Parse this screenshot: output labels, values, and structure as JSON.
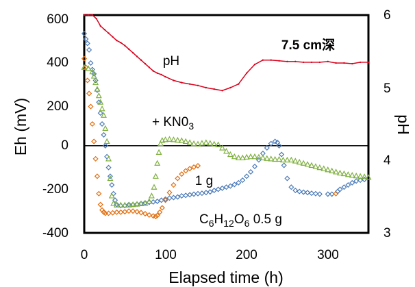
{
  "chart_data": {
    "type": "scatter",
    "xlabel": "Elapsed time (h)",
    "ylabel": "Eh (mV)",
    "y2label": "pH",
    "xlim": [
      0,
      350
    ],
    "ylim": [
      -400,
      600
    ],
    "y2lim": [
      3,
      6
    ],
    "xticks": [
      "0",
      "100",
      "200",
      "300"
    ],
    "yticks": [
      "600",
      "400",
      "200",
      "0",
      "-200",
      "-400"
    ],
    "y2ticks": [
      "6",
      "5",
      "4",
      "3"
    ],
    "zero_line": true,
    "grid": false,
    "series": [
      {
        "color": "#d9001b",
        "marker": "line",
        "axis": "right",
        "points": [
          [
            0,
            6.0
          ],
          [
            5,
            6.0
          ],
          [
            10,
            6.0
          ],
          [
            15,
            5.95
          ],
          [
            20,
            5.85
          ],
          [
            25,
            5.8
          ],
          [
            30,
            5.75
          ],
          [
            35,
            5.7
          ],
          [
            40,
            5.65
          ],
          [
            45,
            5.62
          ],
          [
            50,
            5.58
          ],
          [
            55,
            5.53
          ],
          [
            60,
            5.48
          ],
          [
            65,
            5.43
          ],
          [
            70,
            5.38
          ],
          [
            75,
            5.33
          ],
          [
            80,
            5.28
          ],
          [
            85,
            5.23
          ],
          [
            90,
            5.2
          ],
          [
            95,
            5.18
          ],
          [
            100,
            5.15
          ],
          [
            110,
            5.1
          ],
          [
            120,
            5.07
          ],
          [
            130,
            5.05
          ],
          [
            140,
            5.03
          ],
          [
            150,
            5.0
          ],
          [
            160,
            4.98
          ],
          [
            170,
            4.96
          ],
          [
            180,
            5.0
          ],
          [
            190,
            5.05
          ],
          [
            200,
            5.2
          ],
          [
            210,
            5.32
          ],
          [
            220,
            5.38
          ],
          [
            230,
            5.38
          ],
          [
            240,
            5.37
          ],
          [
            250,
            5.36
          ],
          [
            260,
            5.36
          ],
          [
            270,
            5.35
          ],
          [
            280,
            5.35
          ],
          [
            290,
            5.35
          ],
          [
            300,
            5.36
          ],
          [
            310,
            5.34
          ],
          [
            320,
            5.34
          ],
          [
            330,
            5.33
          ],
          [
            340,
            5.35
          ],
          [
            350,
            5.35
          ]
        ]
      },
      {
        "color": "#4a7ab8",
        "marker": "diamond",
        "axis": "left",
        "points": [
          [
            0,
            515
          ],
          [
            2,
            490
          ],
          [
            4,
            470
          ],
          [
            6,
            440
          ],
          [
            8,
            380
          ],
          [
            10,
            350
          ],
          [
            12,
            330
          ],
          [
            14,
            300
          ],
          [
            16,
            255
          ],
          [
            18,
            200
          ],
          [
            20,
            150
          ],
          [
            22,
            100
          ],
          [
            24,
            50
          ],
          [
            26,
            0
          ],
          [
            28,
            -50
          ],
          [
            30,
            -100
          ],
          [
            32,
            -140
          ],
          [
            34,
            -180
          ],
          [
            36,
            -220
          ],
          [
            38,
            -250
          ],
          [
            40,
            -270
          ],
          [
            45,
            -275
          ],
          [
            50,
            -275
          ],
          [
            55,
            -270
          ],
          [
            60,
            -270
          ],
          [
            65,
            -268
          ],
          [
            70,
            -265
          ],
          [
            75,
            -262
          ],
          [
            80,
            -260
          ],
          [
            85,
            -258
          ],
          [
            90,
            -255
          ],
          [
            95,
            -250
          ],
          [
            100,
            -245
          ],
          [
            105,
            -240
          ],
          [
            110,
            -238
          ],
          [
            115,
            -235
          ],
          [
            120,
            -230
          ],
          [
            125,
            -228
          ],
          [
            130,
            -225
          ],
          [
            135,
            -222
          ],
          [
            140,
            -220
          ],
          [
            145,
            -218
          ],
          [
            150,
            -215
          ],
          [
            155,
            -212
          ],
          [
            160,
            -205
          ],
          [
            165,
            -200
          ],
          [
            170,
            -195
          ],
          [
            175,
            -190
          ],
          [
            180,
            -185
          ],
          [
            185,
            -178
          ],
          [
            190,
            -170
          ],
          [
            195,
            -158
          ],
          [
            200,
            -140
          ],
          [
            205,
            -120
          ],
          [
            210,
            -95
          ],
          [
            215,
            -65
          ],
          [
            220,
            -35
          ],
          [
            225,
            -10
          ],
          [
            230,
            10
          ],
          [
            235,
            20
          ],
          [
            238,
            15
          ],
          [
            240,
            0
          ],
          [
            243,
            -40
          ],
          [
            246,
            -90
          ],
          [
            250,
            -150
          ],
          [
            255,
            -190
          ],
          [
            260,
            -205
          ],
          [
            265,
            -210
          ],
          [
            270,
            -213
          ],
          [
            275,
            -215
          ],
          [
            280,
            -218
          ],
          [
            285,
            -220
          ],
          [
            290,
            -222
          ],
          [
            300,
            -222
          ],
          [
            305,
            -222
          ],
          [
            312,
            -210
          ],
          [
            315,
            -200
          ],
          [
            320,
            -190
          ],
          [
            325,
            -180
          ],
          [
            330,
            -170
          ],
          [
            335,
            -162
          ],
          [
            340,
            -158
          ],
          [
            345,
            -155
          ]
        ]
      },
      {
        "color": "#e36c09",
        "marker": "diamond",
        "axis": "left",
        "points": [
          [
            0,
            400
          ],
          [
            2,
            360
          ],
          [
            4,
            300
          ],
          [
            6,
            240
          ],
          [
            8,
            180
          ],
          [
            10,
            100
          ],
          [
            12,
            20
          ],
          [
            14,
            -60
          ],
          [
            16,
            -140
          ],
          [
            18,
            -220
          ],
          [
            20,
            -270
          ],
          [
            22,
            -295
          ],
          [
            24,
            -305
          ],
          [
            26,
            -310
          ],
          [
            30,
            -310
          ],
          [
            35,
            -308
          ],
          [
            40,
            -305
          ],
          [
            45,
            -305
          ],
          [
            50,
            -303
          ],
          [
            55,
            -300
          ],
          [
            60,
            -300
          ],
          [
            65,
            -303
          ],
          [
            70,
            -307
          ],
          [
            75,
            -312
          ],
          [
            80,
            -318
          ],
          [
            85,
            -322
          ],
          [
            88,
            -325
          ],
          [
            90,
            -320
          ],
          [
            93,
            -305
          ],
          [
            96,
            -285
          ],
          [
            100,
            -250
          ],
          [
            105,
            -215
          ],
          [
            110,
            -180
          ],
          [
            115,
            -150
          ],
          [
            120,
            -130
          ],
          [
            125,
            -115
          ],
          [
            130,
            -105
          ],
          [
            135,
            -98
          ],
          [
            140,
            -92
          ],
          [
            310,
            -220
          ]
        ]
      },
      {
        "color": "#7fb03f",
        "marker": "triangle",
        "axis": "left",
        "points": [
          [
            0,
            360
          ],
          [
            5,
            355
          ],
          [
            10,
            340
          ],
          [
            12,
            320
          ],
          [
            14,
            290
          ],
          [
            16,
            260
          ],
          [
            18,
            230
          ],
          [
            20,
            200
          ],
          [
            22,
            170
          ],
          [
            24,
            140
          ],
          [
            26,
            80
          ],
          [
            28,
            20
          ],
          [
            30,
            -60
          ],
          [
            32,
            -150
          ],
          [
            34,
            -230
          ],
          [
            36,
            -265
          ],
          [
            40,
            -272
          ],
          [
            45,
            -272
          ],
          [
            50,
            -272
          ],
          [
            55,
            -272
          ],
          [
            60,
            -270
          ],
          [
            65,
            -268
          ],
          [
            70,
            -266
          ],
          [
            75,
            -264
          ],
          [
            80,
            -255
          ],
          [
            83,
            -230
          ],
          [
            86,
            -190
          ],
          [
            88,
            -140
          ],
          [
            90,
            -80
          ],
          [
            92,
            -30
          ],
          [
            94,
            10
          ],
          [
            96,
            25
          ],
          [
            100,
            28
          ],
          [
            105,
            30
          ],
          [
            110,
            28
          ],
          [
            115,
            26
          ],
          [
            120,
            24
          ],
          [
            125,
            20
          ],
          [
            130,
            15
          ],
          [
            135,
            10
          ],
          [
            140,
            8
          ],
          [
            145,
            12
          ],
          [
            150,
            15
          ],
          [
            155,
            12
          ],
          [
            160,
            8
          ],
          [
            165,
            5
          ],
          [
            170,
            -10
          ],
          [
            175,
            -25
          ],
          [
            180,
            -40
          ],
          [
            185,
            -50
          ],
          [
            190,
            -55
          ],
          [
            195,
            -55
          ],
          [
            200,
            -52
          ],
          [
            205,
            -50
          ],
          [
            210,
            -50
          ],
          [
            215,
            -52
          ],
          [
            220,
            -55
          ],
          [
            225,
            -58
          ],
          [
            230,
            -60
          ],
          [
            235,
            -62
          ],
          [
            240,
            -62
          ],
          [
            245,
            -65
          ],
          [
            250,
            -65
          ],
          [
            255,
            -65
          ],
          [
            260,
            -70
          ],
          [
            265,
            -75
          ],
          [
            270,
            -80
          ],
          [
            275,
            -85
          ],
          [
            280,
            -90
          ],
          [
            285,
            -95
          ],
          [
            290,
            -100
          ],
          [
            295,
            -105
          ],
          [
            300,
            -110
          ],
          [
            305,
            -115
          ],
          [
            310,
            -120
          ],
          [
            315,
            -125
          ],
          [
            320,
            -128
          ],
          [
            325,
            -132
          ],
          [
            330,
            -135
          ],
          [
            335,
            -138
          ],
          [
            340,
            -140
          ],
          [
            345,
            -142
          ],
          [
            350,
            -145
          ]
        ]
      }
    ],
    "annotations": {
      "depth": "7.5 cm深",
      "ph_label": "pH",
      "kno3_prefix": "+ KN0",
      "kno3_sub": "3",
      "one_g": "1 g",
      "glucose_c": "C",
      "glucose_c_sub": "6",
      "glucose_h": "H",
      "glucose_h_sub": "12",
      "glucose_o": "O",
      "glucose_o_sub": "6",
      "glucose_amount": " 0.5 g"
    }
  }
}
